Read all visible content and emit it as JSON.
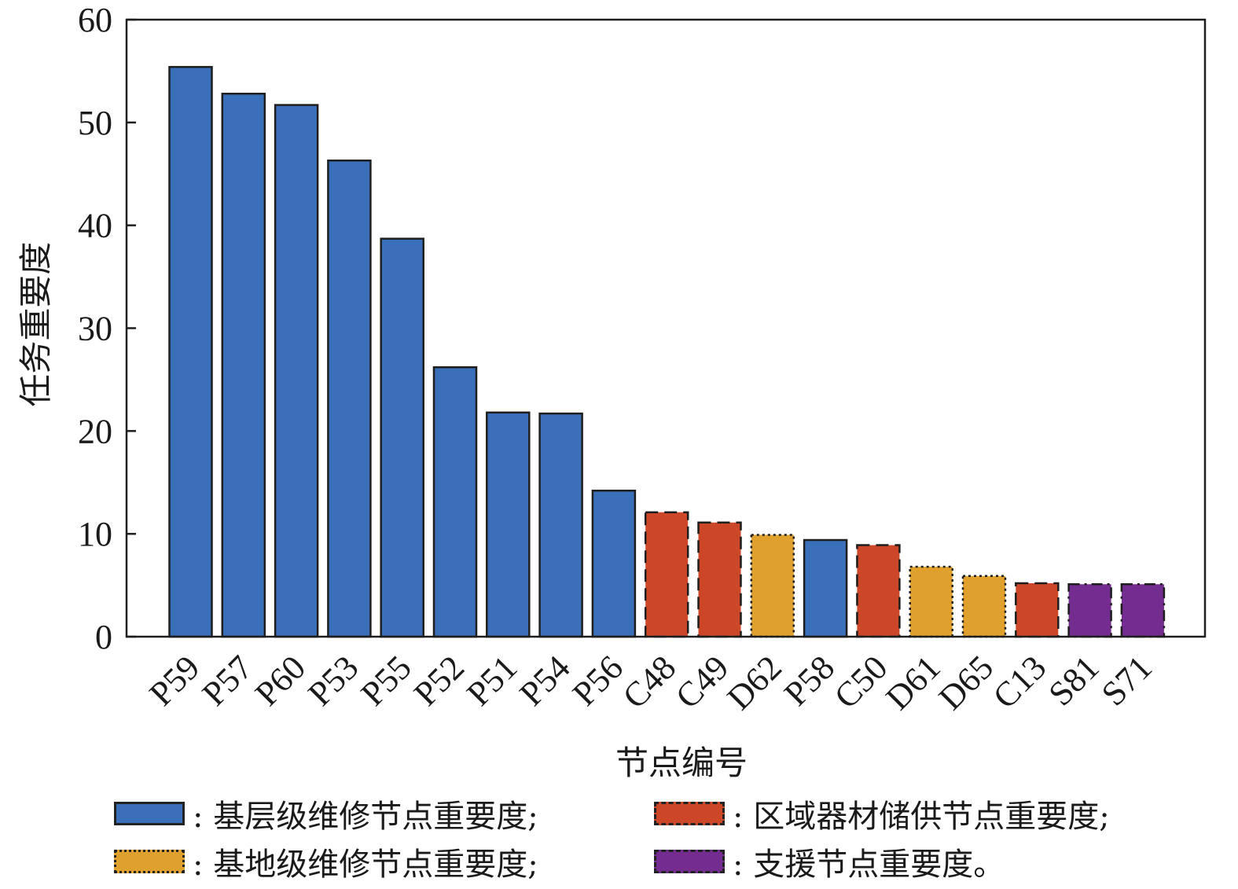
{
  "chart_data": {
    "type": "bar",
    "title": "",
    "xlabel": "节点编号",
    "ylabel": "任务重要度",
    "ylim": [
      0,
      60
    ],
    "yticks": [
      "0",
      "10",
      "20",
      "30",
      "40",
      "50",
      "60"
    ],
    "categories": [
      "P59",
      "P57",
      "P60",
      "P53",
      "P55",
      "P52",
      "P51",
      "P54",
      "P56",
      "C48",
      "C49",
      "D62",
      "P58",
      "C50",
      "D61",
      "D65",
      "C13",
      "S81",
      "S71"
    ],
    "values": [
      55.4,
      52.8,
      51.7,
      46.3,
      38.7,
      26.2,
      21.8,
      21.7,
      14.2,
      12.1,
      11.1,
      9.9,
      9.4,
      8.9,
      6.8,
      5.9,
      5.2,
      5.1,
      5.1
    ],
    "groups": [
      "base",
      "base",
      "base",
      "base",
      "base",
      "base",
      "base",
      "base",
      "base",
      "regional",
      "regional",
      "depot",
      "base",
      "regional",
      "depot",
      "depot",
      "regional",
      "support",
      "support"
    ],
    "legend": [
      {
        "key": "base",
        "label": ": 基层级维修节点重要度;",
        "color": "#3a6fba",
        "border": "solid"
      },
      {
        "key": "regional",
        "label": ": 区域器材储供节点重要度;",
        "color": "#cc4628",
        "border": "dashed"
      },
      {
        "key": "depot",
        "label": ": 基地级维修节点重要度;",
        "color": "#e0a02e",
        "border": "dotted"
      },
      {
        "key": "support",
        "label": ": 支援节点重要度。",
        "color": "#742c91",
        "border": "dashdot"
      }
    ],
    "grid": false
  }
}
